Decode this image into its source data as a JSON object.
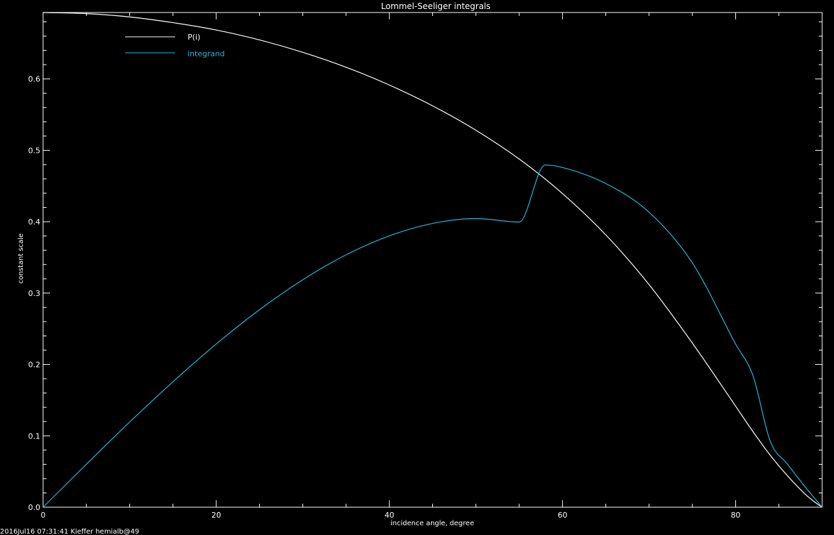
{
  "chart_data": {
    "type": "line",
    "title": "Lommel-Seeliger integrals",
    "xlabel": "incidence angle, degree",
    "ylabel": "constant scale",
    "xlim": [
      0,
      90
    ],
    "ylim": [
      0,
      0.6931
    ],
    "x_ticks": [
      0,
      20,
      40,
      60,
      80
    ],
    "x_tick_labels": [
      "0",
      "20",
      "40",
      "60",
      "80"
    ],
    "y_ticks": [
      0,
      0.1,
      0.2,
      0.3,
      0.4,
      0.5,
      0.6
    ],
    "y_tick_labels": [
      "0.0",
      "0.1",
      "0.2",
      "0.3",
      "0.4",
      "0.5",
      "0.6"
    ],
    "grid": false,
    "legend_position": "top-left",
    "colors": {
      "background": "#000000",
      "axes": "#ffffff",
      "P": "#ffffff",
      "integrand": "#22b8d8"
    },
    "series": [
      {
        "name": "P(i)",
        "color": "#ffffff",
        "x": [
          0,
          5,
          10,
          15,
          20,
          25,
          30,
          35,
          40,
          45,
          50,
          55,
          60,
          65,
          70,
          75,
          80,
          82,
          84,
          86,
          88,
          89,
          90
        ],
        "y": [
          0.6931,
          0.6915,
          0.6869,
          0.6789,
          0.6686,
          0.6547,
          0.6373,
          0.6164,
          0.5915,
          0.5623,
          0.5281,
          0.4878,
          0.4395,
          0.3816,
          0.3119,
          0.23,
          0.1416,
          0.106,
          0.0728,
          0.044,
          0.0187,
          0.0085,
          0.0
        ]
      },
      {
        "name": "integrand",
        "color": "#22b8d8",
        "x": [
          0,
          5,
          10,
          15,
          20,
          25,
          30,
          35,
          40,
          45,
          50,
          55,
          58,
          60,
          65,
          70,
          75,
          80,
          82,
          84,
          86,
          88,
          89,
          90
        ],
        "y": [
          0.0,
          0.0603,
          0.1193,
          0.1757,
          0.2287,
          0.2767,
          0.3187,
          0.3536,
          0.3802,
          0.3976,
          0.4045,
          0.3996,
          0.4795,
          0.476,
          0.4535,
          0.4133,
          0.3424,
          0.2285,
          0.1845,
          0.0924,
          0.0601,
          0.029,
          0.0144,
          0.0
        ]
      }
    ]
  },
  "footer": "2016Jul16 07:31:41 Kieffer hemialb@49"
}
